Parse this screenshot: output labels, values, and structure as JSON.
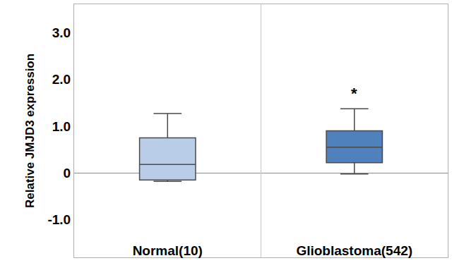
{
  "chart_data": {
    "type": "box",
    "y_label": "Relative JMJD3 expression",
    "categories": [
      "Normal(10)",
      "Glioblastoma(542)"
    ],
    "colors": [
      "#b9cde9",
      "#4f81bd"
    ],
    "whisker_low": [
      -0.18,
      -0.02
    ],
    "q1": [
      -0.15,
      0.22
    ],
    "median": [
      0.18,
      0.55
    ],
    "q3": [
      0.75,
      0.9
    ],
    "whisker_high": [
      1.27,
      1.37
    ],
    "ylim": [
      -1.8,
      3.6
    ],
    "yticks": [
      {
        "value": -1,
        "label": "-1.0"
      },
      0,
      {
        "value": 1,
        "label": "1.0"
      },
      {
        "value": 2,
        "label": "2.0"
      },
      {
        "value": 3,
        "label": "3.0"
      }
    ],
    "grid": false,
    "annotations": [
      {
        "text": "*",
        "category": "Glioblastoma(542)"
      }
    ]
  }
}
